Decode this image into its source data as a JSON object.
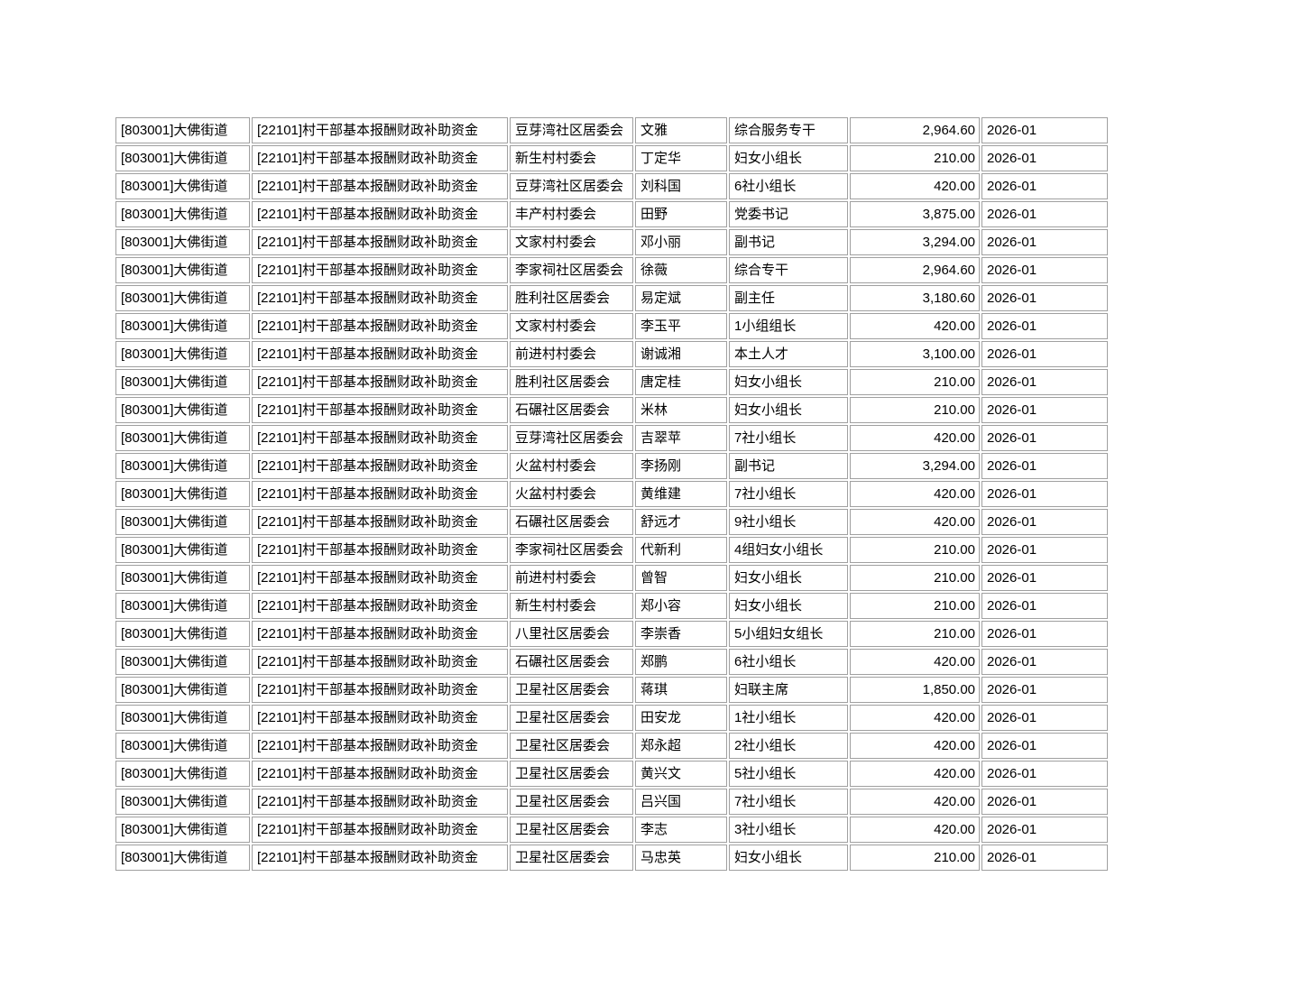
{
  "colors": {
    "background": "#ffffff",
    "cell_border": "#a0a0a0",
    "text": "#000000"
  },
  "table": {
    "columns": [
      {
        "key": "district-code"
      },
      {
        "key": "subsidy-item"
      },
      {
        "key": "committee"
      },
      {
        "key": "person-name"
      },
      {
        "key": "position"
      },
      {
        "key": "amount"
      },
      {
        "key": "period"
      }
    ],
    "rows": [
      [
        "[803001]大佛街道",
        "[22101]村干部基本报酬财政补助资金",
        "豆芽湾社区居委会",
        "文雅",
        "综合服务专干",
        "2,964.60",
        "2026-01"
      ],
      [
        "[803001]大佛街道",
        "[22101]村干部基本报酬财政补助资金",
        "新生村村委会",
        "丁定华",
        "妇女小组长",
        "210.00",
        "2026-01"
      ],
      [
        "[803001]大佛街道",
        "[22101]村干部基本报酬财政补助资金",
        "豆芽湾社区居委会",
        "刘科国",
        "6社小组长",
        "420.00",
        "2026-01"
      ],
      [
        "[803001]大佛街道",
        "[22101]村干部基本报酬财政补助资金",
        "丰产村村委会",
        "田野",
        "党委书记",
        "3,875.00",
        "2026-01"
      ],
      [
        "[803001]大佛街道",
        "[22101]村干部基本报酬财政补助资金",
        "文家村村委会",
        "邓小丽",
        "副书记",
        "3,294.00",
        "2026-01"
      ],
      [
        "[803001]大佛街道",
        "[22101]村干部基本报酬财政补助资金",
        "李家祠社区居委会",
        "徐薇",
        "综合专干",
        "2,964.60",
        "2026-01"
      ],
      [
        "[803001]大佛街道",
        "[22101]村干部基本报酬财政补助资金",
        "胜利社区居委会",
        "易定斌",
        "副主任",
        "3,180.60",
        "2026-01"
      ],
      [
        "[803001]大佛街道",
        "[22101]村干部基本报酬财政补助资金",
        "文家村村委会",
        "李玉平",
        "1小组组长",
        "420.00",
        "2026-01"
      ],
      [
        "[803001]大佛街道",
        "[22101]村干部基本报酬财政补助资金",
        "前进村村委会",
        "谢诚湘",
        "本土人才",
        "3,100.00",
        "2026-01"
      ],
      [
        "[803001]大佛街道",
        "[22101]村干部基本报酬财政补助资金",
        "胜利社区居委会",
        "唐定桂",
        "妇女小组长",
        "210.00",
        "2026-01"
      ],
      [
        "[803001]大佛街道",
        "[22101]村干部基本报酬财政补助资金",
        "石碾社区居委会",
        "米林",
        "妇女小组长",
        "210.00",
        "2026-01"
      ],
      [
        "[803001]大佛街道",
        "[22101]村干部基本报酬财政补助资金",
        "豆芽湾社区居委会",
        "吉翠苹",
        "7社小组长",
        "420.00",
        "2026-01"
      ],
      [
        "[803001]大佛街道",
        "[22101]村干部基本报酬财政补助资金",
        "火盆村村委会",
        "李扬刚",
        "副书记",
        "3,294.00",
        "2026-01"
      ],
      [
        "[803001]大佛街道",
        "[22101]村干部基本报酬财政补助资金",
        "火盆村村委会",
        "黄维建",
        "7社小组长",
        "420.00",
        "2026-01"
      ],
      [
        "[803001]大佛街道",
        "[22101]村干部基本报酬财政补助资金",
        "石碾社区居委会",
        "舒远才",
        "9社小组长",
        "420.00",
        "2026-01"
      ],
      [
        "[803001]大佛街道",
        "[22101]村干部基本报酬财政补助资金",
        "李家祠社区居委会",
        "代新利",
        "4组妇女小组长",
        "210.00",
        "2026-01"
      ],
      [
        "[803001]大佛街道",
        "[22101]村干部基本报酬财政补助资金",
        "前进村村委会",
        "曾智",
        "妇女小组长",
        "210.00",
        "2026-01"
      ],
      [
        "[803001]大佛街道",
        "[22101]村干部基本报酬财政补助资金",
        "新生村村委会",
        "郑小容",
        "妇女小组长",
        "210.00",
        "2026-01"
      ],
      [
        "[803001]大佛街道",
        "[22101]村干部基本报酬财政补助资金",
        "八里社区居委会",
        "李崇香",
        "5小组妇女组长",
        "210.00",
        "2026-01"
      ],
      [
        "[803001]大佛街道",
        "[22101]村干部基本报酬财政补助资金",
        "石碾社区居委会",
        "郑鹏",
        "6社小组长",
        "420.00",
        "2026-01"
      ],
      [
        "[803001]大佛街道",
        "[22101]村干部基本报酬财政补助资金",
        "卫星社区居委会",
        "蒋琪",
        "妇联主席",
        "1,850.00",
        "2026-01"
      ],
      [
        "[803001]大佛街道",
        "[22101]村干部基本报酬财政补助资金",
        "卫星社区居委会",
        "田安龙",
        "1社小组长",
        "420.00",
        "2026-01"
      ],
      [
        "[803001]大佛街道",
        "[22101]村干部基本报酬财政补助资金",
        "卫星社区居委会",
        "郑永超",
        "2社小组长",
        "420.00",
        "2026-01"
      ],
      [
        "[803001]大佛街道",
        "[22101]村干部基本报酬财政补助资金",
        "卫星社区居委会",
        "黄兴文",
        "5社小组长",
        "420.00",
        "2026-01"
      ],
      [
        "[803001]大佛街道",
        "[22101]村干部基本报酬财政补助资金",
        "卫星社区居委会",
        "吕兴国",
        "7社小组长",
        "420.00",
        "2026-01"
      ],
      [
        "[803001]大佛街道",
        "[22101]村干部基本报酬财政补助资金",
        "卫星社区居委会",
        "李志",
        "3社小组长",
        "420.00",
        "2026-01"
      ],
      [
        "[803001]大佛街道",
        "[22101]村干部基本报酬财政补助资金",
        "卫星社区居委会",
        "马忠英",
        "妇女小组长",
        "210.00",
        "2026-01"
      ]
    ]
  }
}
